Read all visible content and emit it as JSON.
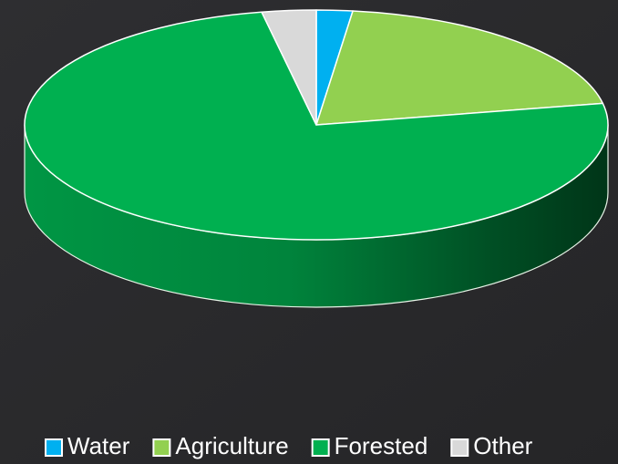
{
  "chart_data": {
    "type": "pie",
    "categories": [
      "Water",
      "Agriculture",
      "Forested",
      "Other"
    ],
    "values": [
      2,
      20,
      75,
      3
    ],
    "colors": [
      "#00b0f0",
      "#92d050",
      "#00b050",
      "#d9d9d9"
    ],
    "legend": "bottom"
  }
}
